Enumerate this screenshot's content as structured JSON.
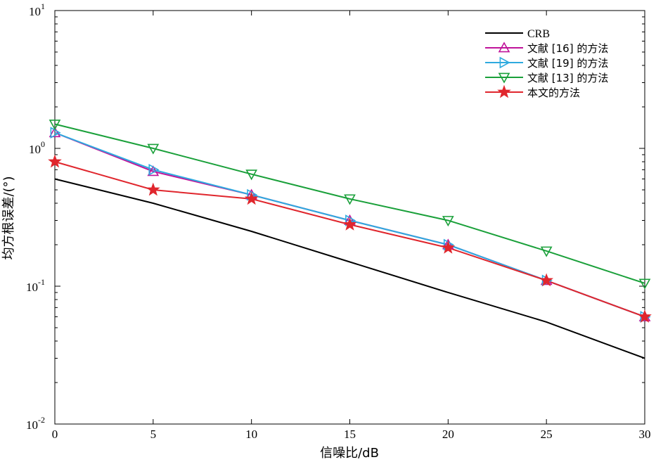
{
  "chart_data": {
    "type": "line",
    "title": "",
    "xlabel": "信噪比/dB",
    "ylabel": "均方根误差/(°)",
    "x": [
      0,
      5,
      10,
      15,
      20,
      25,
      30
    ],
    "xlim": [
      0,
      30
    ],
    "ylim": [
      0.01,
      10
    ],
    "yscale": "log",
    "xticks": [
      "0",
      "5",
      "10",
      "15",
      "20",
      "25",
      "30"
    ],
    "yticks": [
      {
        "base": "10",
        "exp": "-2"
      },
      {
        "base": "10",
        "exp": "-1"
      },
      {
        "base": "10",
        "exp": "0"
      },
      {
        "base": "10",
        "exp": "1"
      }
    ],
    "grid": false,
    "legend_position": "top-right",
    "series": [
      {
        "name": "CRB",
        "color": "#000000",
        "marker": "none",
        "values": [
          0.6,
          0.4,
          0.25,
          0.15,
          0.09,
          0.055,
          0.03
        ]
      },
      {
        "name": "文献 [16] 的方法",
        "color": "#c0149a",
        "marker": "triangle-up",
        "values": [
          1.3,
          0.68,
          0.46,
          0.3,
          0.2,
          0.11,
          0.06
        ]
      },
      {
        "name": "文献 [19] 的方法",
        "color": "#2eaadf",
        "marker": "triangle-right",
        "values": [
          1.3,
          0.7,
          0.46,
          0.3,
          0.2,
          0.11,
          0.06
        ]
      },
      {
        "name": "文献 [13] 的方法",
        "color": "#1aa03a",
        "marker": "triangle-down",
        "values": [
          1.5,
          1.0,
          0.65,
          0.43,
          0.3,
          0.18,
          0.105
        ]
      },
      {
        "name": "本文的方法",
        "color": "#e0262d",
        "marker": "star",
        "values": [
          0.8,
          0.5,
          0.43,
          0.28,
          0.19,
          0.11,
          0.06
        ]
      }
    ]
  }
}
